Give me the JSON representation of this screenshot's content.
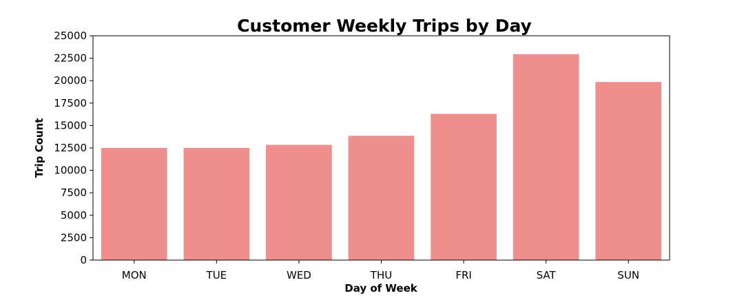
{
  "chart_data": {
    "type": "bar",
    "title": "Customer Weekly Trips by Day",
    "xlabel": "Day of Week",
    "ylabel": "Trip Count",
    "categories": [
      "MON",
      "TUE",
      "WED",
      "THU",
      "FRI",
      "SAT",
      "SUN"
    ],
    "values": [
      12500,
      12500,
      12850,
      13850,
      16300,
      22950,
      19850
    ],
    "ylim": [
      0,
      25000
    ],
    "yticks": [
      0,
      2500,
      5000,
      7500,
      10000,
      12500,
      15000,
      17500,
      20000,
      22500,
      25000
    ],
    "grid": false,
    "colors": {
      "bar": "#ee8f8d",
      "axis": "#000000"
    }
  }
}
